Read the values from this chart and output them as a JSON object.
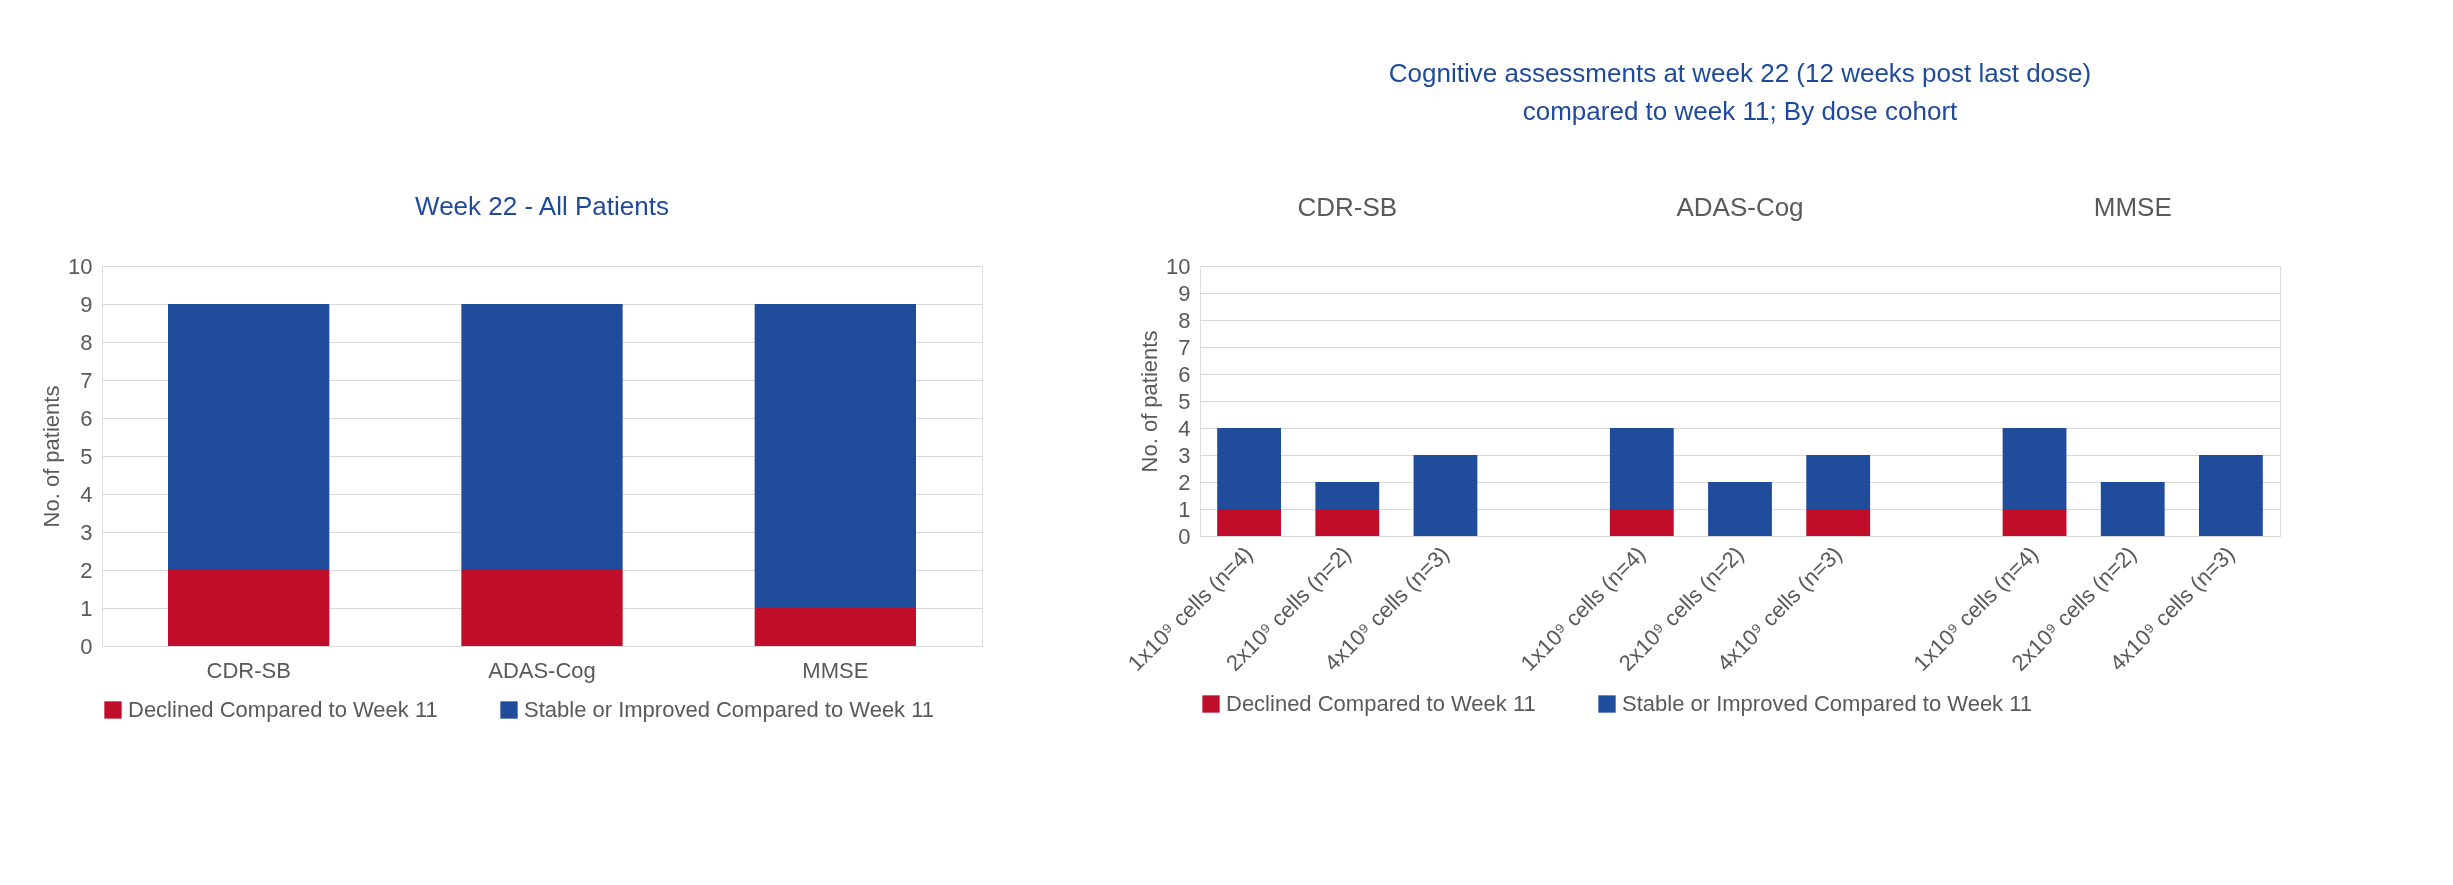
{
  "chart_data": [
    {
      "type": "bar",
      "title": "Week 22 - All Patients",
      "ylabel": "No. of patients",
      "categories": [
        "CDR-SB",
        "ADAS-Cog",
        "MMSE"
      ],
      "stacked": true,
      "ylim": [
        0,
        10
      ],
      "yticks": [
        0,
        1,
        2,
        3,
        4,
        5,
        6,
        7,
        8,
        9,
        10
      ],
      "grid": "y",
      "legend": "bottom",
      "series": [
        {
          "name": "Declined Compared to Week 11",
          "color": "#c00d2a",
          "values": [
            2,
            2,
            1
          ]
        },
        {
          "name": "Stable or Improved Compared to Week 11",
          "color": "#1f4d9c",
          "values": [
            7,
            7,
            8
          ]
        }
      ]
    },
    {
      "type": "bar",
      "title": "Cognitive assessments at week 22 (12 weeks post last dose)\ncompared to week 11; By dose cohort",
      "ylabel": "No. of patients",
      "categories": [
        "1x10⁹ cells (n=4)",
        "2x10⁹ cells (n=2)",
        "4x10⁹ cells (n=3)",
        "1x10⁹ cells (n=4)",
        "2x10⁹ cells (n=2)",
        "4x10⁹ cells (n=3)",
        "1x10⁹ cells (n=4)",
        "2x10⁹ cells (n=2)",
        "4x10⁹ cells (n=3)"
      ],
      "annotations": [
        "CDR-SB",
        "ADAS-Cog",
        "MMSE"
      ],
      "stacked": true,
      "ylim": [
        0,
        10
      ],
      "yticks": [
        0,
        1,
        2,
        3,
        4,
        5,
        6,
        7,
        8,
        9,
        10
      ],
      "grid": "y",
      "legend": "bottom",
      "series": [
        {
          "name": "Declined Compared to Week 11",
          "color": "#c00d2a",
          "values": [
            1,
            1,
            0,
            1,
            0,
            1,
            1,
            0,
            0
          ]
        },
        {
          "name": "Stable or Improved Compared to Week 11",
          "color": "#1f4d9c",
          "values": [
            3,
            1,
            3,
            3,
            2,
            2,
            3,
            2,
            3
          ]
        }
      ]
    }
  ]
}
